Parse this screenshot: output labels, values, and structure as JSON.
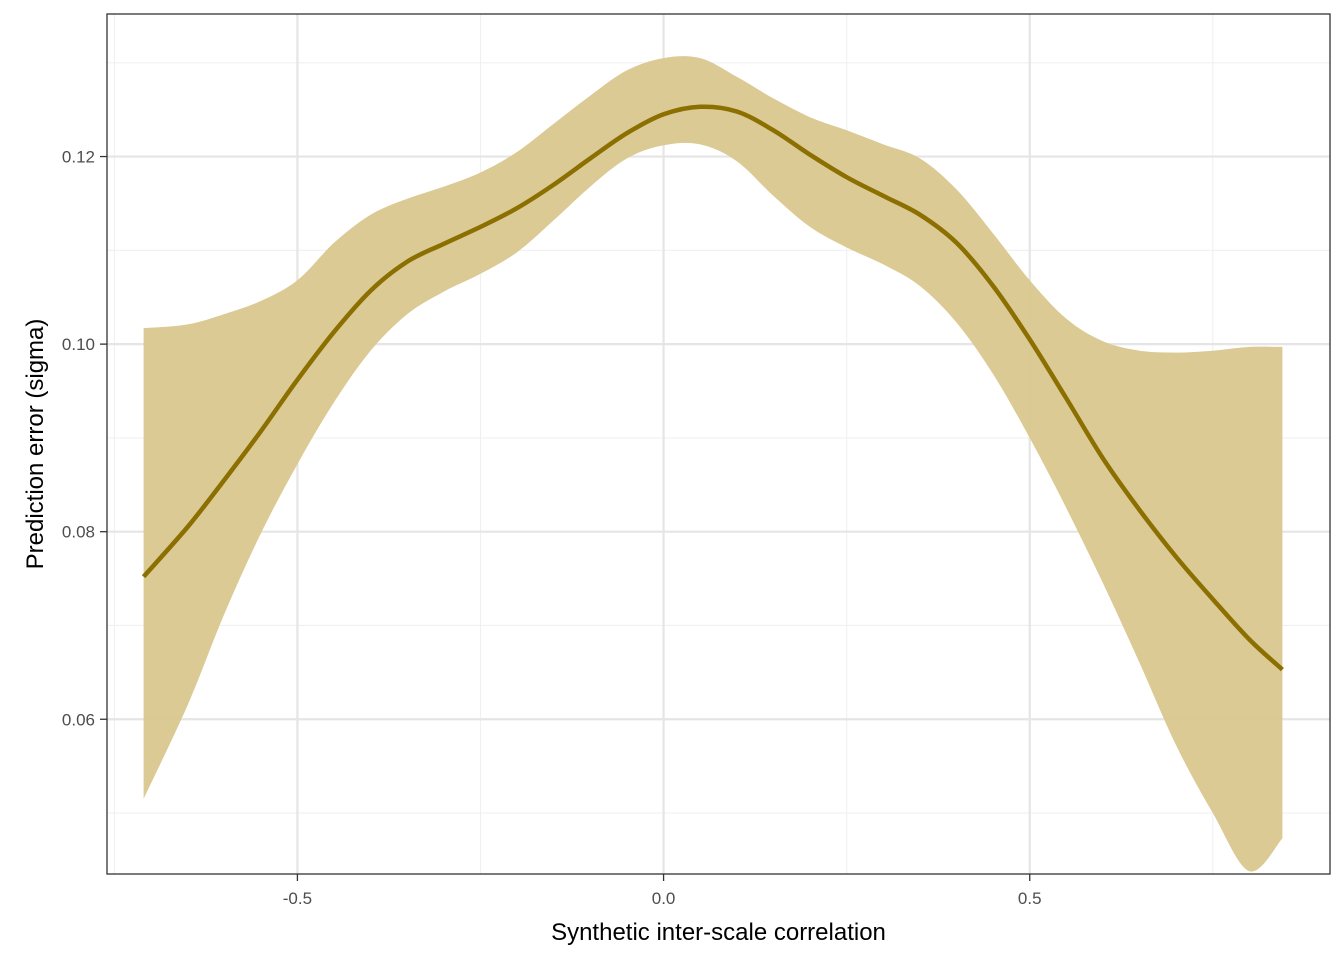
{
  "chart_data": {
    "type": "line",
    "title": "",
    "xlabel": "Synthetic inter-scale correlation",
    "ylabel": "Prediction error (sigma)",
    "xlim": [
      -0.76,
      0.91
    ],
    "ylim": [
      0.0435,
      0.1352
    ],
    "x_ticks": [
      -0.5,
      0.0,
      0.5
    ],
    "x_tick_labels": [
      "-0.5",
      "0.0",
      "0.5"
    ],
    "y_ticks": [
      0.06,
      0.08,
      0.1,
      0.12
    ],
    "y_tick_labels": [
      "0.06",
      "0.08",
      "0.10",
      "0.12"
    ],
    "grid": true,
    "legend": "none",
    "colors": {
      "line": "#8b6f00",
      "ribbon": "#d9c78e",
      "grid_major": "#e5e5e5",
      "grid_minor": "#f0f0f0",
      "panel_border": "#333333"
    },
    "series": [
      {
        "x": [
          -0.71,
          -0.65,
          -0.6,
          -0.55,
          -0.5,
          -0.45,
          -0.4,
          -0.35,
          -0.3,
          -0.25,
          -0.2,
          -0.15,
          -0.1,
          -0.05,
          0.0,
          0.05,
          0.1,
          0.15,
          0.2,
          0.25,
          0.3,
          0.35,
          0.4,
          0.45,
          0.5,
          0.55,
          0.6,
          0.65,
          0.7,
          0.75,
          0.8,
          0.845
        ],
        "y": [
          0.0752,
          0.0805,
          0.0855,
          0.0907,
          0.0962,
          0.1013,
          0.1057,
          0.1088,
          0.1107,
          0.1125,
          0.1145,
          0.117,
          0.1198,
          0.1225,
          0.1245,
          0.1253,
          0.1248,
          0.1228,
          0.1202,
          0.1178,
          0.1158,
          0.1138,
          0.1108,
          0.1062,
          0.1005,
          0.0942,
          0.0878,
          0.0823,
          0.0773,
          0.0728,
          0.0685,
          0.0653
        ],
        "lower": [
          0.0515,
          0.0615,
          0.0712,
          0.0798,
          0.0872,
          0.0938,
          0.0993,
          0.1032,
          0.1056,
          0.1075,
          0.1098,
          0.1132,
          0.1168,
          0.1198,
          0.1212,
          0.1213,
          0.1195,
          0.1158,
          0.1125,
          0.1103,
          0.1085,
          0.1062,
          0.1023,
          0.0968,
          0.09,
          0.0825,
          0.0745,
          0.066,
          0.0572,
          0.05,
          0.0438,
          0.0473
        ],
        "upper": [
          0.1017,
          0.1021,
          0.1032,
          0.1046,
          0.1068,
          0.1108,
          0.1138,
          0.1155,
          0.1168,
          0.1183,
          0.1205,
          0.1235,
          0.1265,
          0.1292,
          0.1305,
          0.1305,
          0.1285,
          0.1262,
          0.1242,
          0.1228,
          0.1213,
          0.1198,
          0.1165,
          0.1118,
          0.1068,
          0.1027,
          0.1003,
          0.0993,
          0.0991,
          0.0993,
          0.0997,
          0.0997
        ]
      }
    ]
  }
}
